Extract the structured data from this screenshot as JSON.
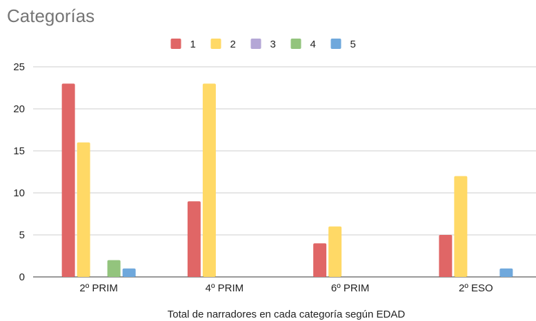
{
  "chart_data": {
    "type": "bar",
    "title": "Categorías",
    "xlabel": "Total de narradores en cada categoría según EDAD",
    "ylabel": "",
    "categories": [
      "2º PRIM",
      "4º PRIM",
      "6º PRIM",
      "2º ESO"
    ],
    "series": [
      {
        "name": "1",
        "color": "#e06666",
        "values": [
          23,
          9,
          4,
          5
        ]
      },
      {
        "name": "2",
        "color": "#ffd966",
        "values": [
          16,
          23,
          6,
          12
        ]
      },
      {
        "name": "3",
        "color": "#b4a7d6",
        "values": [
          0,
          0,
          0,
          0
        ]
      },
      {
        "name": "4",
        "color": "#93c47d",
        "values": [
          2,
          0,
          0,
          0
        ]
      },
      {
        "name": "5",
        "color": "#6fa8dc",
        "values": [
          1,
          0,
          0,
          1
        ]
      }
    ],
    "ylim": [
      0,
      25
    ],
    "yticks": [
      0,
      5,
      10,
      15,
      20,
      25
    ],
    "grid": true,
    "legend_position": "top"
  }
}
